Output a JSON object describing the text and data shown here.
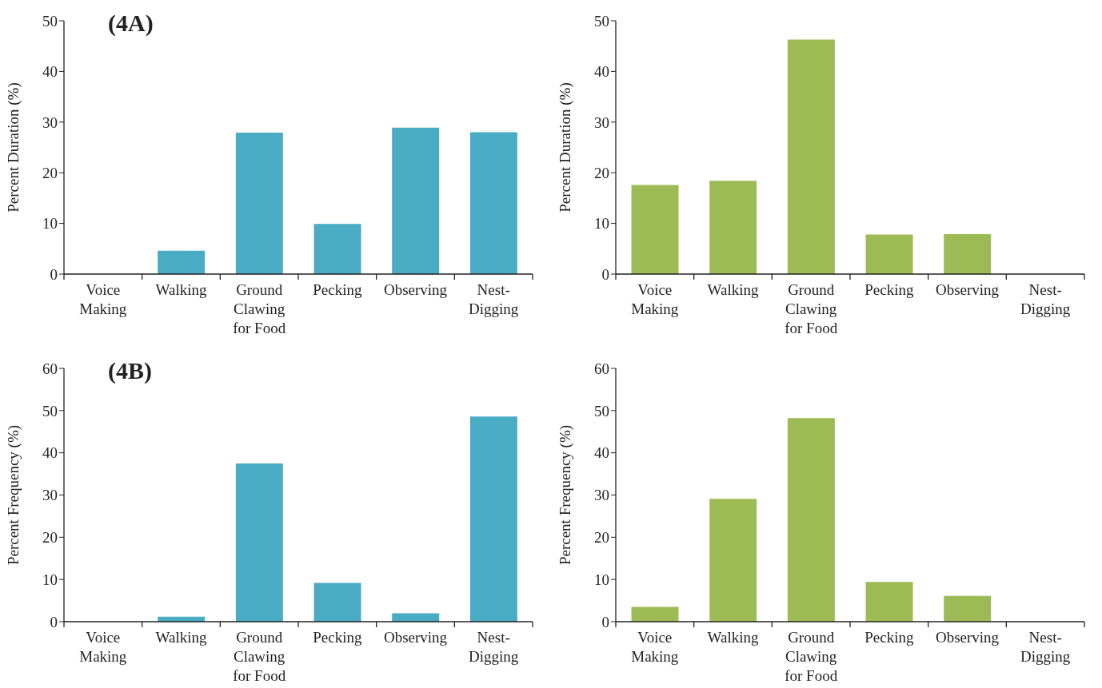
{
  "chart_data": [
    {
      "type": "bar",
      "categories": [
        "Voice Making",
        "Walking",
        "Ground Clawing for Food",
        "Pecking",
        "Observing",
        "Nest-Digging"
      ],
      "values": [
        0,
        4.6,
        27.9,
        9.9,
        28.9,
        28.0
      ],
      "color": "#4aabc4",
      "ylabel": "Percent Duration (%)",
      "ylim": [
        0,
        50
      ],
      "yticks": [
        0,
        10,
        20,
        30,
        40,
        50
      ],
      "annotations": [
        "(4A)"
      ]
    },
    {
      "type": "bar",
      "categories": [
        "Voice Making",
        "Walking",
        "Ground Clawing for Food",
        "Pecking",
        "Observing",
        "Nest-Digging"
      ],
      "values": [
        17.6,
        18.4,
        46.3,
        7.8,
        7.9,
        0
      ],
      "color": "#9dbb55",
      "ylabel": "Percent Duration (%)",
      "ylim": [
        0,
        50
      ],
      "yticks": [
        0,
        10,
        20,
        30,
        40,
        50
      ]
    },
    {
      "type": "bar",
      "categories": [
        "Voice Making",
        "Walking",
        "Ground Clawing for Food",
        "Pecking",
        "Observing",
        "Nest-Digging"
      ],
      "values": [
        0,
        1.2,
        37.5,
        9.2,
        2.0,
        48.6
      ],
      "color": "#4aabc4",
      "ylabel": "Percent Frequency (%)",
      "ylim": [
        0,
        60
      ],
      "yticks": [
        0,
        10,
        20,
        30,
        40,
        50,
        60
      ],
      "annotations": [
        "(4B)"
      ]
    },
    {
      "type": "bar",
      "categories": [
        "Voice Making",
        "Walking",
        "Ground Clawing for Food",
        "Pecking",
        "Observing",
        "Nest-Digging"
      ],
      "values": [
        3.5,
        29.1,
        48.2,
        9.4,
        6.1,
        0
      ],
      "color": "#9dbb55",
      "ylabel": "Percent Frequency (%)",
      "ylim": [
        0,
        60
      ],
      "yticks": [
        0,
        10,
        20,
        30,
        40,
        50,
        60
      ]
    }
  ]
}
